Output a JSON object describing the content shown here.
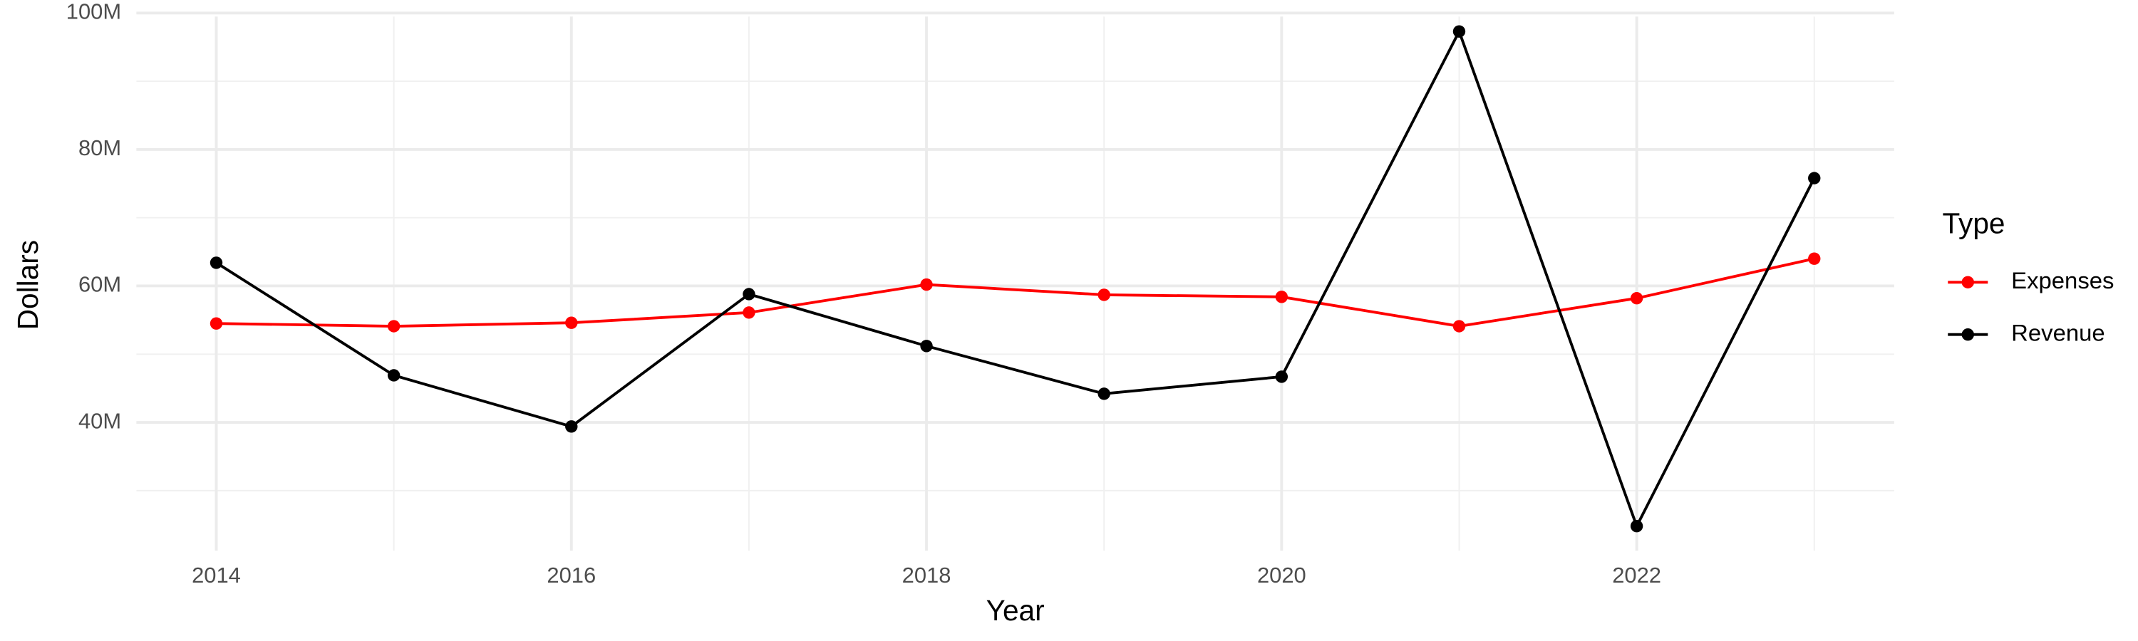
{
  "chart_data": {
    "type": "line",
    "x_label": "Year",
    "y_label": "Dollars",
    "legend_title": "Type",
    "x": [
      2014,
      2015,
      2016,
      2017,
      2018,
      2019,
      2020,
      2021,
      2022,
      2023
    ],
    "series": [
      {
        "name": "Expenses",
        "color": "#ff0000",
        "values": [
          54500000,
          54100000,
          54600000,
          56100000,
          60200000,
          58700000,
          58400000,
          54100000,
          58200000,
          64000000
        ]
      },
      {
        "name": "Revenue",
        "color": "#000000",
        "values": [
          63400000,
          46900000,
          39400000,
          58800000,
          51200000,
          44200000,
          46700000,
          97300000,
          24800000,
          75800000
        ]
      }
    ],
    "xlim": [
      2013.55,
      2023.45
    ],
    "xticks": [
      2014,
      2016,
      2018,
      2020,
      2022
    ],
    "x_minor_ticks": [
      2015,
      2017,
      2019,
      2021,
      2023
    ],
    "ylim": [
      21200000,
      100900000
    ],
    "yticks": [
      {
        "value": 40000000,
        "label": "40M"
      },
      {
        "value": 60000000,
        "label": "60M"
      },
      {
        "value": 80000000,
        "label": "80M"
      },
      {
        "value": 100000000,
        "label": "100M"
      }
    ],
    "y_minor_ticks": [
      30000000,
      50000000,
      70000000,
      90000000
    ],
    "grid": true,
    "legend": "right"
  }
}
